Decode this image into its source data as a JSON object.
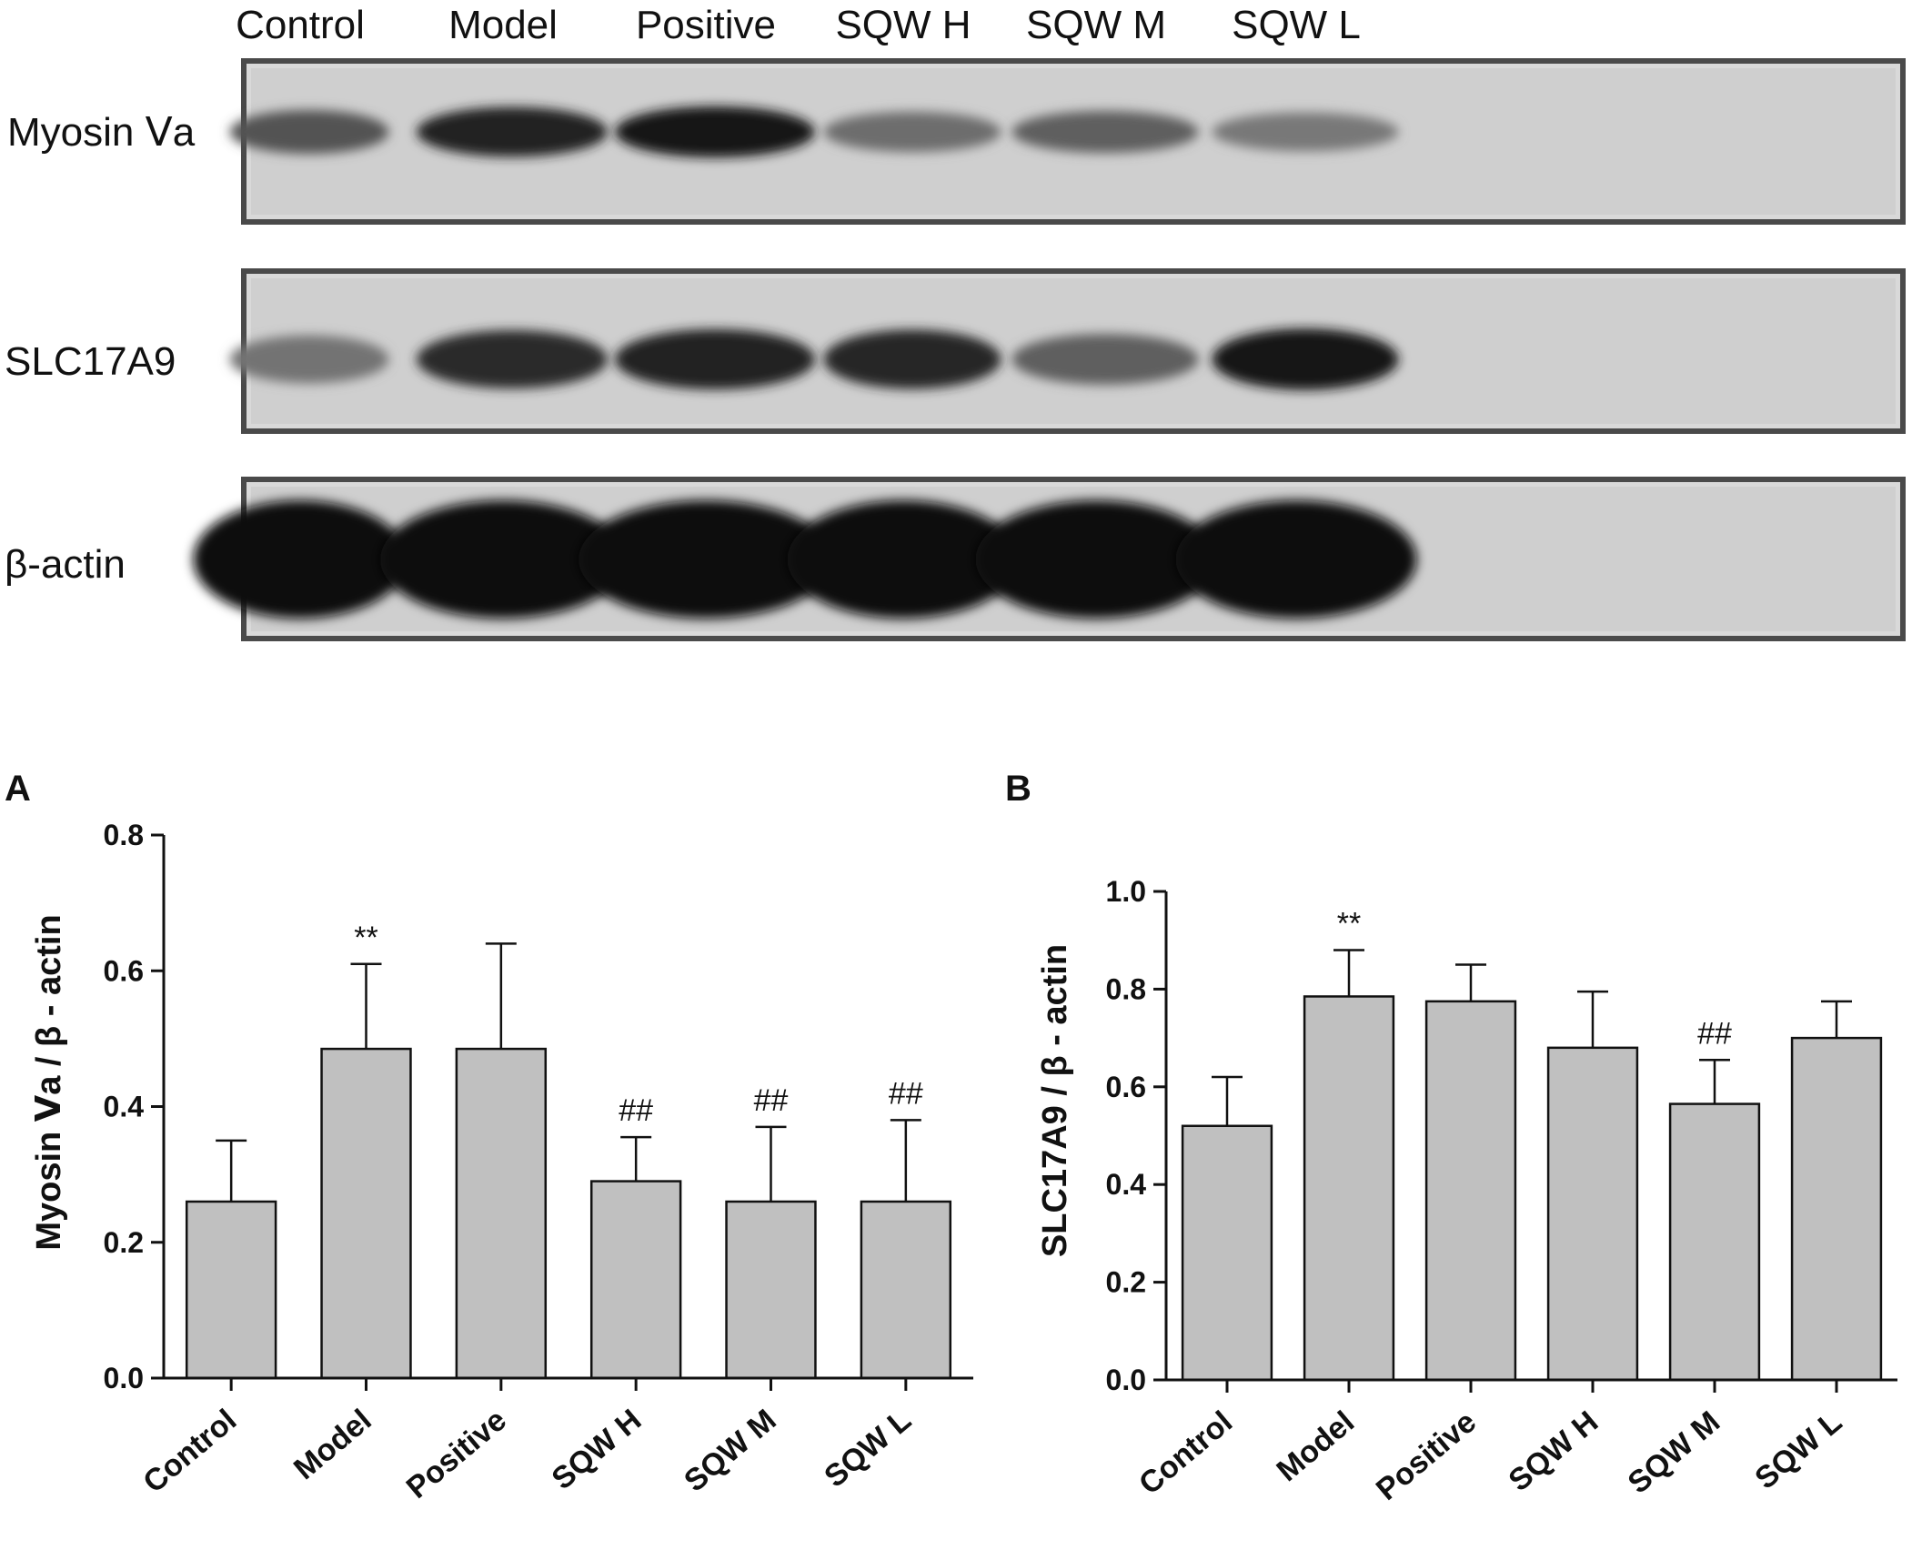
{
  "blot": {
    "lanes": [
      "Control",
      "Model",
      "Positive",
      "SQW H",
      "SQW M",
      "SQW L"
    ],
    "rows": [
      {
        "label": "Myosin Ⅴa",
        "intensity": [
          0.62,
          0.88,
          0.93,
          0.48,
          0.55,
          0.42
        ]
      },
      {
        "label": "SLC17A9",
        "intensity": [
          0.45,
          0.82,
          0.88,
          0.85,
          0.55,
          0.92
        ]
      },
      {
        "label": "β-actin",
        "intensity": [
          1.0,
          1.0,
          1.0,
          1.0,
          1.0,
          1.0
        ]
      }
    ]
  },
  "chart_data": [
    {
      "panel": "A",
      "type": "bar",
      "categories": [
        "Control",
        "Model",
        "Positive",
        "SQW H",
        "SQW M",
        "SQW L"
      ],
      "values": [
        0.26,
        0.485,
        0.485,
        0.29,
        0.26,
        0.26
      ],
      "errors": [
        0.09,
        0.125,
        0.155,
        0.065,
        0.11,
        0.12
      ],
      "annotations": [
        "",
        "**",
        "",
        "##",
        "##",
        "##"
      ],
      "ylabel": "Myosin Ⅴa / β - actin",
      "ylim": [
        0,
        0.8
      ],
      "yticks": [
        "0.0",
        "0.2",
        "0.4",
        "0.6",
        "0.8"
      ],
      "bar_color": "#c0c0c0"
    },
    {
      "panel": "B",
      "type": "bar",
      "categories": [
        "Control",
        "Model",
        "Positive",
        "SQW H",
        "SQW M",
        "SQW L"
      ],
      "values": [
        0.52,
        0.785,
        0.775,
        0.68,
        0.565,
        0.7
      ],
      "errors": [
        0.1,
        0.095,
        0.075,
        0.115,
        0.09,
        0.075
      ],
      "annotations": [
        "",
        "**",
        "",
        "",
        "##",
        ""
      ],
      "ylabel": "SLC17A9 / β - actin",
      "ylim": [
        0,
        1.0
      ],
      "yticks": [
        "0.0",
        "0.2",
        "0.4",
        "0.6",
        "0.8",
        "1.0"
      ],
      "bar_color": "#c0c0c0"
    }
  ]
}
